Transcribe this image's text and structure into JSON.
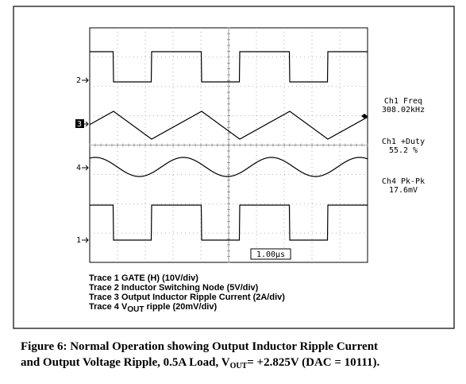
{
  "scope": {
    "channel_markers": [
      "2",
      "3",
      "4",
      "1"
    ],
    "timebase": "1.00µs",
    "measurements": [
      {
        "label": "Ch1 Freq",
        "value": "308.02kHz"
      },
      {
        "label": "Ch1 +Duty",
        "value": "55.2 %"
      },
      {
        "label": "Ch4 Pk-Pk",
        "value": "17.6mV"
      }
    ]
  },
  "legend": {
    "line1": "Trace 1 GATE (H) (10V/div)",
    "line2": "Trace 2 Inductor Switching Node (5V/div)",
    "line3": "Trace 3 Output Inductor Ripple Current (2A/div)",
    "line4_a": "Trace 4 V",
    "line4_sub": "OUT",
    "line4_b": " ripple (20mV/div)"
  },
  "caption": {
    "line1": "Figure 6:  Normal Operation showing Output Inductor Ripple Current",
    "line2_a": "and Output Voltage Ripple, 0.5A Load, V",
    "line2_sub": "OUT",
    "line2_b": "= +2.825V (DAC = 10111)."
  }
}
